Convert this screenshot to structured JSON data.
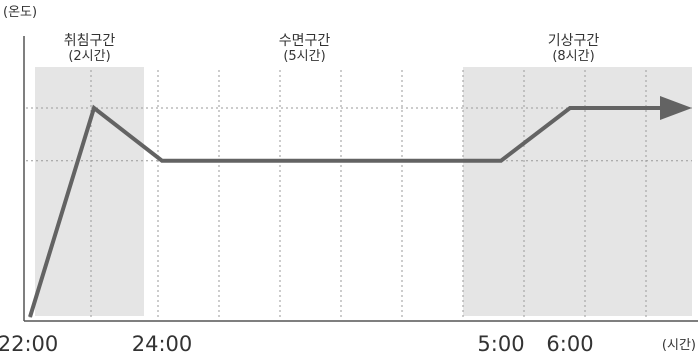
{
  "chart_data": {
    "type": "line",
    "xlabel": "(시간)",
    "ylabel": "(온도)",
    "x_ticks": [
      "22:00",
      "24:00",
      "5:00",
      "6:00"
    ],
    "x_range_hours_from_2200": [
      0,
      11.2
    ],
    "y_gridlines": 2,
    "y_range": [
      0,
      1.3
    ],
    "zones": [
      {
        "title": "취침구간",
        "duration": "(2시간)",
        "start": "22:00",
        "end": "24:00",
        "shaded": true
      },
      {
        "title": "수면구간",
        "duration": "(5시간)",
        "start": "24:00",
        "end": "5:00",
        "shaded": false
      },
      {
        "title": "기상구간",
        "duration": "(8시간)",
        "start": "5:00",
        "end": "+8h",
        "shaded": true
      }
    ],
    "series": [
      {
        "points": [
          {
            "x": "22:00",
            "y": 0
          },
          {
            "x": "23:00",
            "y": 1.0
          },
          {
            "x": "24:00",
            "y": 0.75
          },
          {
            "x": "5:00",
            "y": 0.75
          },
          {
            "x": "6:00",
            "y": 1.0
          },
          {
            "x": "7:00",
            "y": 1.0
          }
        ],
        "end_arrow": true
      }
    ],
    "colors": {
      "line": "#636363",
      "shade": "#e5e5e5",
      "axis": "#555555",
      "grid": "#9a9a9a",
      "text": "#333333"
    }
  }
}
